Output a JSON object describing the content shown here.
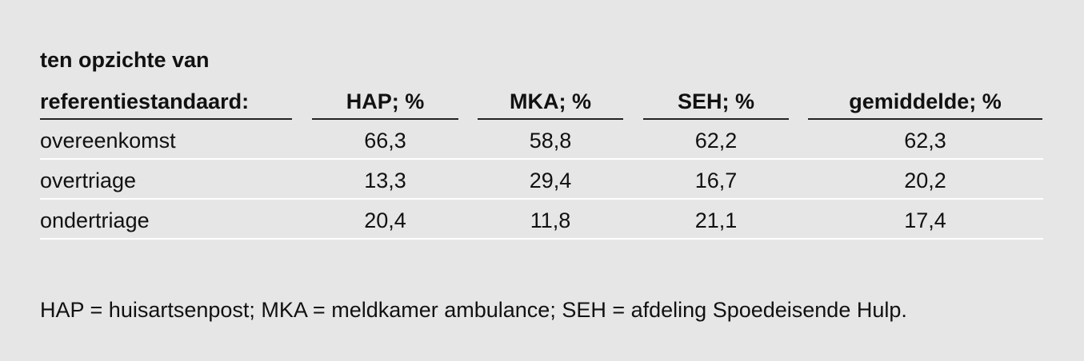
{
  "table": {
    "header": [
      [
        "ten opzichte van",
        "referentiestandaard:"
      ],
      "HAP; %",
      "MKA; %",
      "SEH; %",
      "gemiddelde; %"
    ],
    "rows": [
      [
        "overeenkomst",
        "66,3",
        "58,8",
        "62,2",
        "62,3"
      ],
      [
        "overtriage",
        "13,3",
        "29,4",
        "16,7",
        "20,2"
      ],
      [
        "ondertriage",
        "20,4",
        "11,8",
        "21,1",
        "17,4"
      ]
    ]
  },
  "footnote": "HAP = huisartsenpost; MKA = meldkamer ambulance; SEH = afdeling Spoedeisende Hulp."
}
